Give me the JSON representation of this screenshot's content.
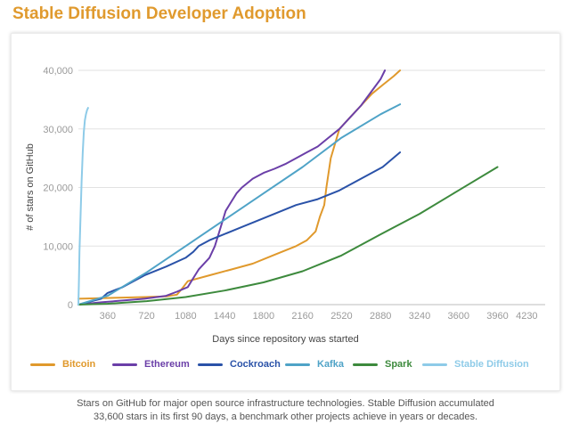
{
  "title": "Stable Diffusion Developer Adoption",
  "caption_line1": "Stars on GitHub for major open source infrastructure technologies. Stable Diffusion accumulated",
  "caption_line2": "33,600 stars in its first 90 days, a benchmark other projects achieve in years or decades.",
  "chart_data": {
    "type": "line",
    "title": "Stable Diffusion Developer Adoption",
    "xlabel": "Days since repository was started",
    "ylabel": "# of stars on GitHub",
    "xlim": [
      90,
      4400
    ],
    "ylim": [
      0,
      40000
    ],
    "x_ticks": [
      360,
      720,
      1080,
      1440,
      1800,
      2160,
      2520,
      2880,
      3240,
      3600,
      3960,
      4230
    ],
    "x_tick_labels": [
      "360",
      "720",
      "1080",
      "1440",
      "1800",
      "2160",
      "2520",
      "2880",
      "3240",
      "3600",
      "3960",
      "4230"
    ],
    "y_ticks": [
      0,
      10000,
      20000,
      30000,
      40000
    ],
    "y_tick_labels": [
      "0",
      "10,000",
      "20,000",
      "30,000",
      "40,000"
    ],
    "grid": "horizontal",
    "legend_position": "bottom",
    "series": [
      {
        "name": "Bitcoin",
        "color": "#e0992c",
        "x": [
          90,
          300,
          500,
          700,
          900,
          1000,
          1050,
          1100,
          1300,
          1500,
          1700,
          1900,
          2100,
          2200,
          2280,
          2320,
          2360,
          2380,
          2420,
          2500,
          2600,
          2700,
          2800,
          2900,
          3000,
          3060
        ],
        "y": [
          1000,
          1100,
          1200,
          1300,
          1400,
          1700,
          2800,
          4000,
          5000,
          6000,
          7000,
          8500,
          10000,
          11000,
          12500,
          15000,
          17000,
          20000,
          25000,
          30000,
          32000,
          34000,
          36000,
          37500,
          39000,
          40000
        ]
      },
      {
        "name": "Ethereum",
        "color": "#6b3fa8",
        "x": [
          90,
          300,
          500,
          700,
          900,
          1000,
          1100,
          1150,
          1200,
          1300,
          1350,
          1400,
          1450,
          1500,
          1550,
          1600,
          1700,
          1800,
          1900,
          2000,
          2100,
          2200,
          2300,
          2400,
          2500,
          2600,
          2700,
          2800,
          2880,
          2920
        ],
        "y": [
          0,
          400,
          700,
          1000,
          1500,
          2200,
          3000,
          4500,
          6000,
          8000,
          10000,
          13000,
          16000,
          17500,
          19000,
          20000,
          21500,
          22500,
          23200,
          24000,
          25000,
          26000,
          27000,
          28500,
          30000,
          32000,
          34000,
          36500,
          38500,
          40000
        ]
      },
      {
        "name": "Cockroach",
        "color": "#2a52a8",
        "x": [
          90,
          300,
          360,
          500,
          700,
          900,
          1080,
          1150,
          1200,
          1300,
          1500,
          1700,
          1900,
          2100,
          2300,
          2500,
          2700,
          2900,
          3060
        ],
        "y": [
          0,
          1000,
          2000,
          3000,
          5000,
          6500,
          8000,
          9000,
          10000,
          11000,
          12500,
          14000,
          15500,
          17000,
          18000,
          19500,
          21500,
          23500,
          26000
        ]
      },
      {
        "name": "Kafka",
        "color": "#4fa3c7",
        "x": [
          90,
          360,
          720,
          1080,
          1440,
          1800,
          2160,
          2520,
          2880,
          3060
        ],
        "y": [
          0,
          1500,
          5500,
          10000,
          14500,
          19000,
          23500,
          28500,
          32500,
          34200
        ]
      },
      {
        "name": "Spark",
        "color": "#3d8a3d",
        "x": [
          90,
          360,
          720,
          1080,
          1440,
          1800,
          2160,
          2520,
          2880,
          3240,
          3600,
          3960
        ],
        "y": [
          0,
          150,
          600,
          1300,
          2400,
          3800,
          5700,
          8400,
          12000,
          15500,
          19500,
          23500
        ]
      },
      {
        "name": "Stable Diffusion",
        "color": "#8ecbe8",
        "x": [
          90,
          95,
          100,
          110,
          120,
          130,
          140,
          150,
          160,
          170,
          180
        ],
        "y": [
          0,
          4000,
          9000,
          15000,
          21000,
          26000,
          29500,
          31500,
          32500,
          33200,
          33600
        ]
      }
    ]
  }
}
